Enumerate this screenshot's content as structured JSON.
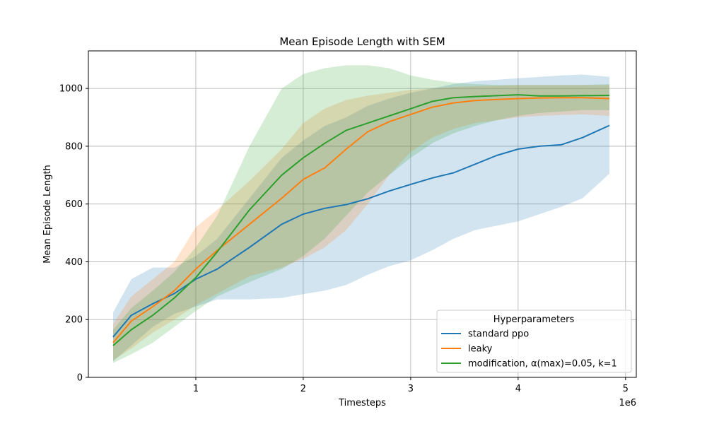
{
  "chart_data": {
    "type": "line",
    "title": "Mean Episode Length with SEM",
    "xlabel": "Timesteps",
    "ylabel": "Mean Episode Length",
    "x_offset_label": "1e6",
    "xlim": [
      0.0,
      5.1
    ],
    "ylim": [
      0,
      1130
    ],
    "x_ticks": [
      1,
      2,
      3,
      4,
      5
    ],
    "y_ticks": [
      0,
      200,
      400,
      600,
      800,
      1000
    ],
    "grid": true,
    "legend": {
      "title": "Hyperparameters",
      "position": "lower-right"
    },
    "x_unit_scale": 1000000,
    "series": [
      {
        "name": "standard ppo",
        "color": "#1f77b4",
        "x": [
          0.23,
          0.4,
          0.6,
          0.8,
          1.0,
          1.2,
          1.5,
          1.8,
          2.0,
          2.2,
          2.4,
          2.6,
          2.8,
          3.0,
          3.2,
          3.4,
          3.6,
          3.8,
          4.0,
          4.2,
          4.4,
          4.6,
          4.85
        ],
        "mean": [
          140,
          215,
          255,
          290,
          340,
          375,
          450,
          530,
          565,
          585,
          598,
          618,
          645,
          668,
          690,
          708,
          738,
          768,
          790,
          800,
          805,
          830,
          872
        ],
        "lower": [
          55,
          110,
          175,
          220,
          245,
          270,
          270,
          275,
          288,
          300,
          320,
          355,
          385,
          405,
          440,
          480,
          510,
          525,
          540,
          565,
          590,
          620,
          705
        ],
        "upper": [
          225,
          340,
          380,
          380,
          420,
          480,
          620,
          760,
          820,
          870,
          900,
          940,
          965,
          985,
          1000,
          1015,
          1025,
          1030,
          1035,
          1040,
          1045,
          1048,
          1040
        ]
      },
      {
        "name": "leaky",
        "color": "#ff7f0e",
        "x": [
          0.23,
          0.4,
          0.6,
          0.8,
          1.0,
          1.2,
          1.5,
          1.8,
          2.0,
          2.2,
          2.4,
          2.6,
          2.8,
          3.0,
          3.2,
          3.4,
          3.6,
          3.8,
          4.0,
          4.2,
          4.4,
          4.6,
          4.85
        ],
        "mean": [
          120,
          195,
          245,
          300,
          375,
          440,
          530,
          620,
          685,
          725,
          790,
          850,
          885,
          910,
          935,
          950,
          958,
          962,
          965,
          967,
          968,
          968,
          965
        ],
        "lower": [
          60,
          100,
          155,
          200,
          250,
          290,
          350,
          380,
          410,
          450,
          510,
          600,
          700,
          780,
          830,
          860,
          880,
          890,
          900,
          905,
          908,
          910,
          905
        ],
        "upper": [
          185,
          280,
          340,
          400,
          520,
          580,
          680,
          790,
          880,
          930,
          960,
          975,
          985,
          995,
          1000,
          1005,
          1008,
          1010,
          1012,
          1012,
          1012,
          1012,
          1012
        ]
      },
      {
        "name": "modification, α(max)=0.05, k=1",
        "color": "#2ca02c",
        "x": [
          0.23,
          0.4,
          0.6,
          0.8,
          1.0,
          1.2,
          1.5,
          1.8,
          2.0,
          2.2,
          2.4,
          2.6,
          2.8,
          3.0,
          3.2,
          3.4,
          3.6,
          3.8,
          4.0,
          4.2,
          4.4,
          4.6,
          4.85
        ],
        "mean": [
          110,
          165,
          215,
          275,
          345,
          435,
          580,
          700,
          760,
          810,
          855,
          880,
          905,
          930,
          955,
          968,
          972,
          975,
          978,
          974,
          974,
          975,
          976
        ],
        "lower": [
          50,
          80,
          120,
          175,
          230,
          280,
          330,
          375,
          420,
          480,
          560,
          640,
          700,
          760,
          810,
          845,
          870,
          890,
          905,
          915,
          920,
          925,
          925
        ],
        "upper": [
          165,
          240,
          300,
          365,
          450,
          560,
          800,
          1000,
          1050,
          1070,
          1080,
          1080,
          1070,
          1045,
          1030,
          1020,
          1015,
          1012,
          1012,
          1012,
          1012,
          1012,
          1015
        ]
      }
    ]
  }
}
